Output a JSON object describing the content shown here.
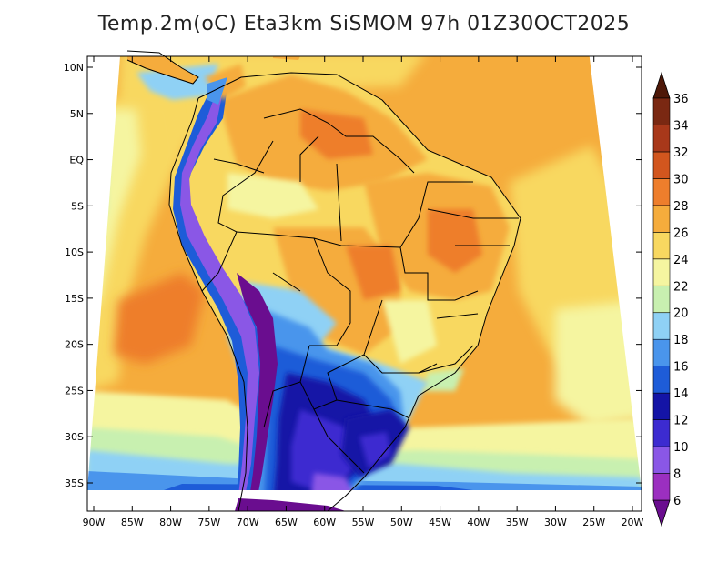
{
  "title": "Temp.2m(oC) Eta3km SiSMOM 97h 01Z30OCT2025",
  "variable": "Temperature at 2 m",
  "units": "oC",
  "lat_labels": [
    "10N",
    "5N",
    "EQ",
    "5S",
    "10S",
    "15S",
    "20S",
    "25S",
    "30S",
    "35S"
  ],
  "lat_values": [
    10,
    5,
    0,
    -5,
    -10,
    -15,
    -20,
    -25,
    -30,
    -35
  ],
  "lon_labels": [
    "90W",
    "85W",
    "80W",
    "75W",
    "70W",
    "65W",
    "60W",
    "55W",
    "50W",
    "45W",
    "40W",
    "35W",
    "30W",
    "25W",
    "20W"
  ],
  "lon_values": [
    -90,
    -85,
    -80,
    -75,
    -70,
    -65,
    -60,
    -55,
    -50,
    -45,
    -40,
    -35,
    -30,
    -25,
    -20
  ],
  "colorbar": {
    "levels": [
      6,
      8,
      10,
      12,
      14,
      16,
      18,
      20,
      22,
      24,
      26,
      28,
      30,
      32,
      34,
      36
    ],
    "labels": [
      "6",
      "8",
      "10",
      "12",
      "14",
      "16",
      "18",
      "20",
      "22",
      "24",
      "26",
      "28",
      "30",
      "32",
      "34",
      "36"
    ],
    "colors": [
      "#6a0d8f",
      "#9b2fc0",
      "#8a57e6",
      "#3c2bd0",
      "#1414a6",
      "#1e5cd8",
      "#4a95ec",
      "#8fd1f5",
      "#c8f0b0",
      "#f5f5a0",
      "#f8d860",
      "#f5ac3c",
      "#ee7e2c",
      "#d2561e",
      "#a8381a",
      "#7a2812",
      "#4e1808"
    ],
    "under_color": "#6a0d8f",
    "over_color": "#4e1808"
  }
}
